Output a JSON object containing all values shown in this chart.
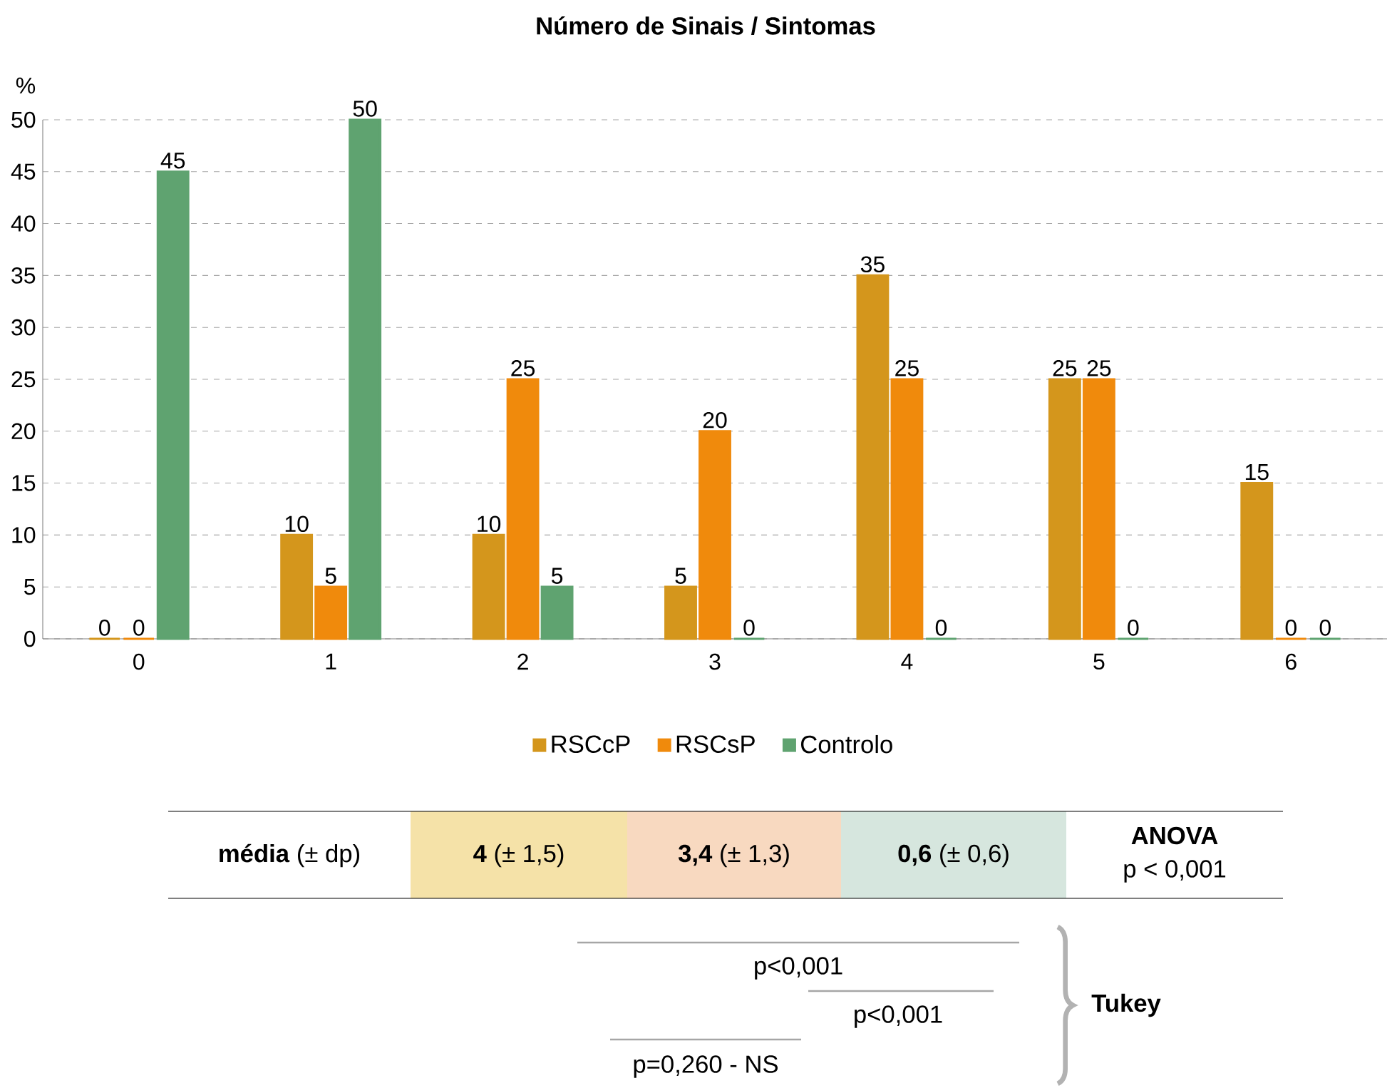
{
  "chart_data": {
    "type": "bar",
    "title": "**Número de Sinais / Sintomas**",
    "ylabel": "%",
    "categories": [
      "0",
      "1",
      "2",
      "3",
      "4",
      "5",
      "6"
    ],
    "series": [
      {
        "name": "RSCcP",
        "color": "#d4961c",
        "values": [
          0,
          10,
          10,
          5,
          35,
          25,
          15
        ]
      },
      {
        "name": "RSCsP",
        "color": "#f08a0c",
        "values": [
          0,
          5,
          25,
          20,
          25,
          25,
          0
        ]
      },
      {
        "name": "Controlo",
        "color": "#5fa370",
        "values": [
          45,
          50,
          5,
          0,
          0,
          0,
          0
        ]
      }
    ],
    "ylim": [
      0,
      50
    ],
    "yticks": [
      0,
      5,
      10,
      15,
      20,
      25,
      30,
      35,
      40,
      45,
      50
    ],
    "grid": "y",
    "legend": "bottom",
    "data_labels": true,
    "annotations": [
      "**média** (± dp)",
      "**4** (± 1,5)",
      "**3,4** (± 1,3)",
      "**0,6** (± 0,6)",
      "**ANOVA**",
      "p < 0,001",
      "p<0,001",
      "p<0,001",
      "p=0,260 - NS",
      "**Tukey**"
    ]
  }
}
